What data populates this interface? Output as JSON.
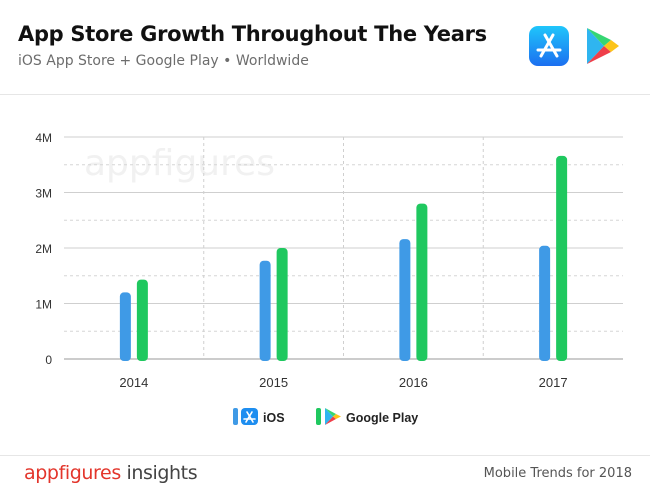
{
  "header": {
    "title": "App Store Growth Throughout The Years",
    "subtitle": "iOS App Store + Google Play • Worldwide",
    "icons": [
      "app-store-icon",
      "google-play-icon"
    ]
  },
  "chart_data": {
    "type": "bar",
    "categories": [
      "2014",
      "2015",
      "2016",
      "2017"
    ],
    "series": [
      {
        "name": "iOS",
        "values": [
          1.2,
          1.77,
          2.16,
          2.04
        ],
        "color": "#3f9ae6"
      },
      {
        "name": "Google Play",
        "values": [
          1.43,
          2.0,
          2.8,
          3.66
        ],
        "color": "#1fc85f"
      }
    ],
    "y_ticks": [
      "0",
      "1M",
      "2M",
      "3M",
      "4M"
    ],
    "ylim": [
      0,
      4
    ],
    "unit": "millions of apps",
    "grid": true,
    "legend_position": "bottom-center",
    "watermark": "appfigures"
  },
  "footer": {
    "brand_primary": "appfigures",
    "brand_secondary": "insights",
    "note": "Mobile Trends for 2018"
  }
}
